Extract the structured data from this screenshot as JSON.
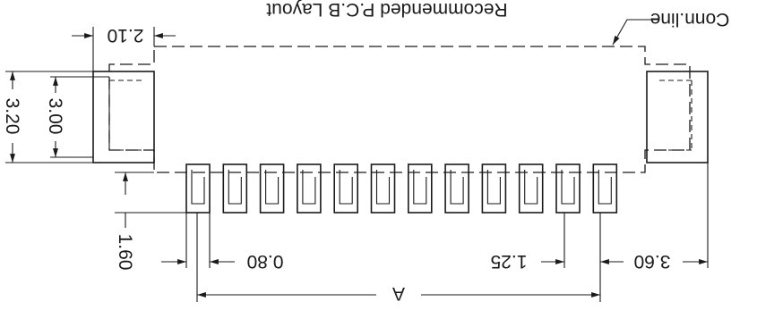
{
  "title": "Recommended P.C.B Layout",
  "conn_line_label": "Conn.line",
  "dimensions": {
    "d_2_10": "2.10",
    "d_3_20": "3.20",
    "d_3_00": "3.00",
    "d_1_60": "1.60",
    "d_0_80": "0.80",
    "d_1_25": "1.25",
    "d_3_60": "3.60",
    "d_A": "A"
  },
  "pad_count": 12
}
